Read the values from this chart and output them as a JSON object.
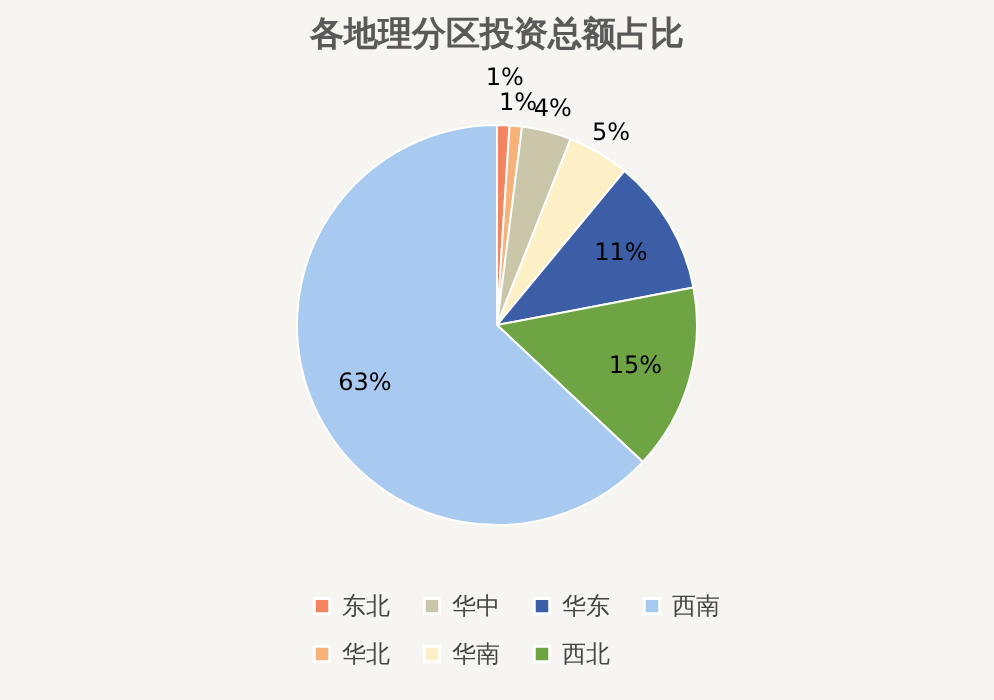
{
  "chart_data": {
    "type": "pie",
    "title": "各地理分区投资总额占比",
    "categories": [
      "东北",
      "华北",
      "华中",
      "华南",
      "华东",
      "西北",
      "西南"
    ],
    "values": [
      1,
      1,
      4,
      5,
      11,
      15,
      63
    ],
    "colors": [
      "#f4845f",
      "#f7b27a",
      "#c9c6a9",
      "#fdf0c6",
      "#3b5ea6",
      "#6ea443",
      "#a8c9f0"
    ],
    "value_labels": [
      "1%",
      "1%",
      "4%",
      "5%",
      "11%",
      "15%",
      "63%"
    ],
    "legend": "bottom"
  }
}
